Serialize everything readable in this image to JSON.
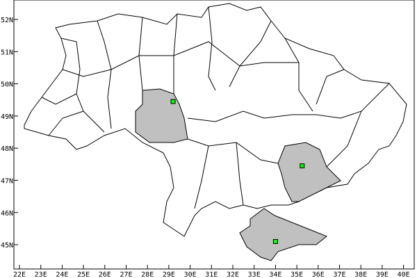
{
  "map": {
    "lon_ticks": [
      "22E",
      "23E",
      "24E",
      "25E",
      "26E",
      "27E",
      "28E",
      "29E",
      "30E",
      "31E",
      "32E",
      "33E",
      "34E",
      "35E",
      "36E",
      "37E",
      "38E",
      "39E",
      "40E"
    ],
    "lat_ticks": [
      "45N",
      "46N",
      "47N",
      "48N",
      "49N",
      "50N",
      "51N",
      "52N"
    ],
    "lon_range": [
      21.8,
      40.5
    ],
    "lat_range": [
      44.2,
      52.6
    ],
    "colors": {
      "highlight_fill": "#c0c0c0",
      "marker_fill": "#00ff00",
      "border": "#000000"
    },
    "markers": [
      {
        "lon": 29.2,
        "lat": 49.45
      },
      {
        "lon": 35.25,
        "lat": 47.45
      },
      {
        "lon": 34.0,
        "lat": 45.1
      }
    ]
  }
}
